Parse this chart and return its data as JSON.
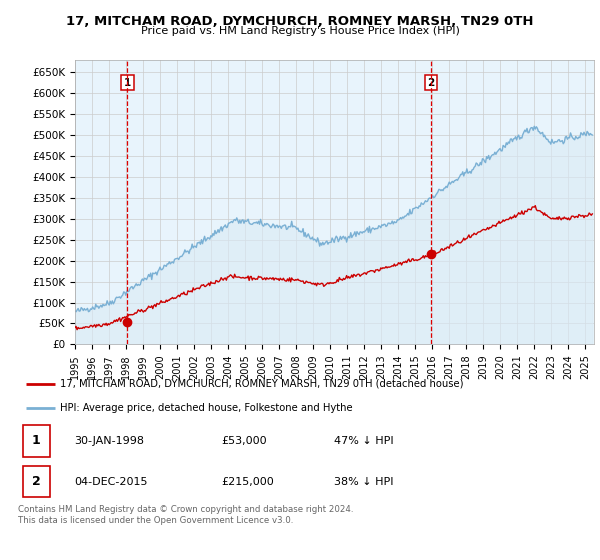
{
  "title": "17, MITCHAM ROAD, DYMCHURCH, ROMNEY MARSH, TN29 0TH",
  "subtitle": "Price paid vs. HM Land Registry's House Price Index (HPI)",
  "ylim": [
    0,
    680000
  ],
  "xlim_start": 1995.0,
  "xlim_end": 2025.5,
  "transaction1": {
    "date": 1998.08,
    "value": 53000,
    "label": "1"
  },
  "transaction2": {
    "date": 2015.92,
    "value": 215000,
    "label": "2"
  },
  "legend_line1": "17, MITCHAM ROAD, DYMCHURCH, ROMNEY MARSH, TN29 0TH (detached house)",
  "legend_line2": "HPI: Average price, detached house, Folkestone and Hythe",
  "table_row1": [
    "1",
    "30-JAN-1998",
    "£53,000",
    "47% ↓ HPI"
  ],
  "table_row2": [
    "2",
    "04-DEC-2015",
    "£215,000",
    "38% ↓ HPI"
  ],
  "footnote": "Contains HM Land Registry data © Crown copyright and database right 2024.\nThis data is licensed under the Open Government Licence v3.0.",
  "price_line_color": "#cc0000",
  "hpi_line_color": "#7ab0d4",
  "hpi_fill_color": "#daeaf5",
  "vline_color": "#dd0000",
  "grid_color": "#cccccc",
  "background_color": "#ffffff",
  "plot_bg_color": "#e8f4fc"
}
